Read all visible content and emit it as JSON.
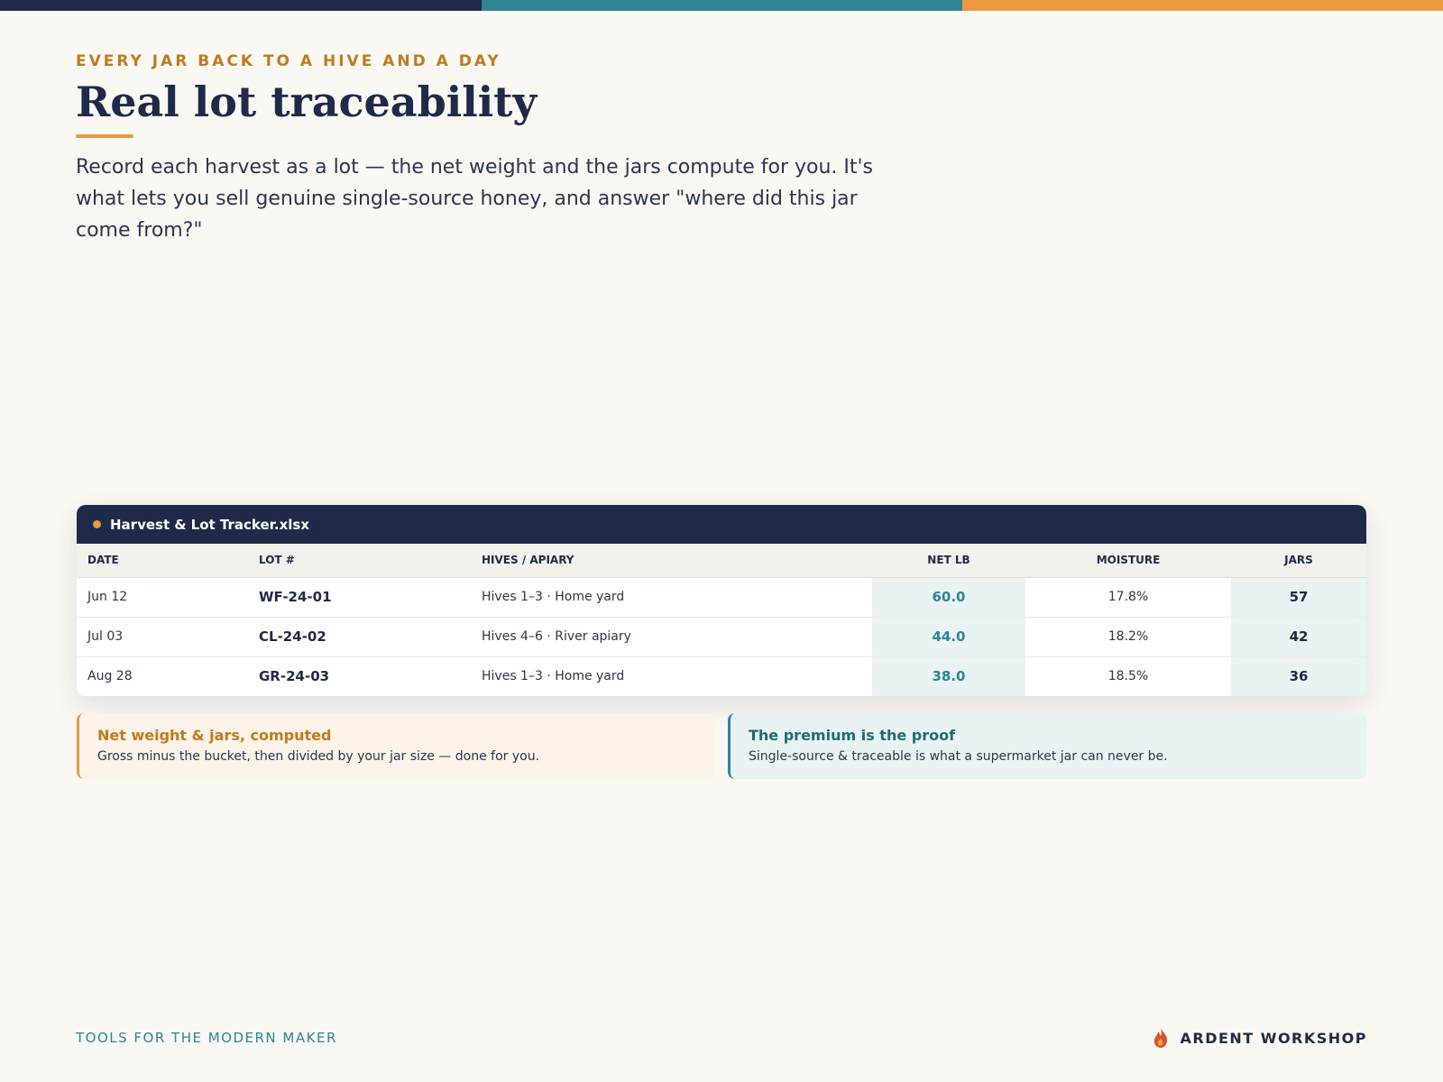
{
  "header": {
    "eyebrow": "EVERY JAR BACK TO A HIVE AND A DAY",
    "title": "Real lot traceability",
    "body": "Record each harvest as a lot — the net weight and the jars compute for you. It's what lets you sell genuine single-source honey, and answer \"where did this jar come from?\""
  },
  "table": {
    "filename": "Harvest & Lot Tracker.xlsx",
    "columns": [
      "DATE",
      "LOT #",
      "HIVES / APIARY",
      "NET LB",
      "MOISTURE",
      "JARS"
    ],
    "rows": [
      [
        "Jun 12",
        "WF-24-01",
        "Hives 1–3 · Home yard",
        "60.0",
        "17.8%",
        "57"
      ],
      [
        "Jul 03",
        "CL-24-02",
        "Hives 4–6 · River apiary",
        "44.0",
        "18.2%",
        "42"
      ],
      [
        "Aug 28",
        "GR-24-03",
        "Hives 1–3 · Home yard",
        "38.0",
        "18.5%",
        "36"
      ]
    ]
  },
  "callouts": [
    {
      "title": "Net weight & jars, computed",
      "text": "Gross minus the bucket, then divided by your jar size — done for you."
    },
    {
      "title": "The premium is the proof",
      "text": "Single-source & traceable is what a supermarket jar can never be."
    }
  ],
  "footer": {
    "tagline": "TOOLS FOR THE MODERN MAKER",
    "brand": "ARDENT WORKSHOP"
  }
}
